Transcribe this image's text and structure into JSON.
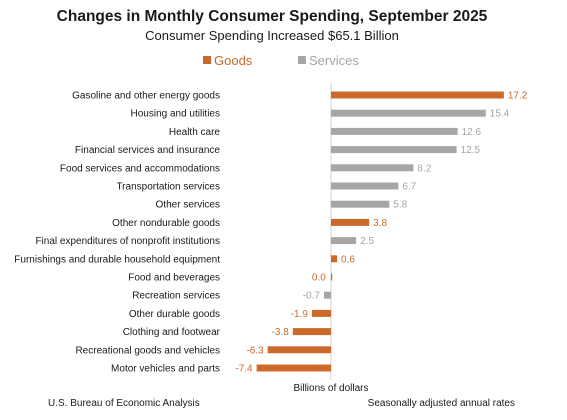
{
  "chart_data": {
    "type": "bar",
    "orientation": "horizontal",
    "title": "Changes in Monthly Consumer Spending, September 2025",
    "subtitle": "Consumer Spending Increased $65.1 Billion",
    "xlabel": "Billions of dollars",
    "note_left": "U.S. Bureau of Economic Analysis",
    "note_right": "Seasonally adjusted annual rates",
    "legend_position": "top",
    "colors": {
      "Goods": "#cc6a2c",
      "Services": "#a6a6a6"
    },
    "legend": [
      {
        "name": "Goods",
        "color": "#cc6a2c"
      },
      {
        "name": "Services",
        "color": "#a6a6a6"
      }
    ],
    "xlim": [
      -7.4,
      17.2
    ],
    "grid": false,
    "categories": [
      "Gasoline and other energy goods",
      "Housing and utilities",
      "Health care",
      "Financial services and insurance",
      "Food services and accommodations",
      "Transportation services",
      "Other services",
      "Other nondurable goods",
      "Final expenditures of nonprofit institutions",
      "Furnishings and durable household equipment",
      "Food and beverages",
      "Recreation services",
      "Other durable goods",
      "Clothing and footwear",
      "Recreational goods and vehicles",
      "Motor vehicles and parts"
    ],
    "values": [
      17.2,
      15.4,
      12.6,
      12.5,
      8.2,
      6.7,
      5.8,
      3.8,
      2.5,
      0.6,
      0.0,
      -0.7,
      -1.9,
      -3.8,
      -6.3,
      -7.4
    ],
    "value_labels": [
      "17.2",
      "15.4",
      "12.6",
      "12.5",
      "8.2",
      "6.7",
      "5.8",
      "3.8",
      "2.5",
      "0.6",
      "0.0",
      "-0.7",
      "-1.9",
      "-3.8",
      "-6.3",
      "-7.4"
    ],
    "groups": [
      "Goods",
      "Services",
      "Services",
      "Services",
      "Services",
      "Services",
      "Services",
      "Goods",
      "Services",
      "Goods",
      "Goods",
      "Services",
      "Goods",
      "Goods",
      "Goods",
      "Goods"
    ]
  }
}
